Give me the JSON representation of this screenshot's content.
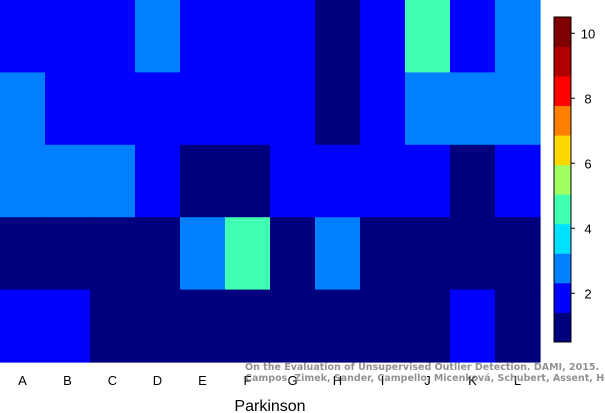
{
  "chart_data": {
    "type": "heatmap",
    "xlabel": "Parkinson",
    "categories": [
      "A",
      "B",
      "C",
      "D",
      "E",
      "F",
      "G",
      "H",
      "I",
      "J",
      "K",
      "L"
    ],
    "rows": [
      [
        2,
        2,
        2,
        3,
        2,
        2,
        2,
        1,
        2,
        5,
        2,
        3
      ],
      [
        3,
        2,
        2,
        2,
        2,
        2,
        2,
        1,
        2,
        3,
        3,
        3
      ],
      [
        3,
        3,
        3,
        2,
        1,
        1,
        2,
        2,
        2,
        2,
        1,
        2
      ],
      [
        1,
        1,
        1,
        1,
        3,
        5,
        1,
        3,
        1,
        1,
        1,
        1
      ],
      [
        2,
        2,
        1,
        1,
        1,
        1,
        1,
        1,
        1,
        1,
        2,
        1
      ]
    ],
    "colorbar": {
      "min": 0.5,
      "max": 10.5,
      "ticks": [
        2,
        4,
        6,
        8,
        10
      ],
      "colors": [
        "#00007f",
        "#0000ff",
        "#0080ff",
        "#00e0ff",
        "#40ffb0",
        "#a0ff60",
        "#ffd700",
        "#ff7f00",
        "#ff0000",
        "#b00000",
        "#7f0000"
      ]
    }
  },
  "watermark": {
    "line1": "On the Evaluation of Unsupervised Outlier Detection. DAMI, 2015.",
    "line2": "Campos, Zimek, Sander, Campello, Micenková, Schubert, Assent, Houle"
  }
}
